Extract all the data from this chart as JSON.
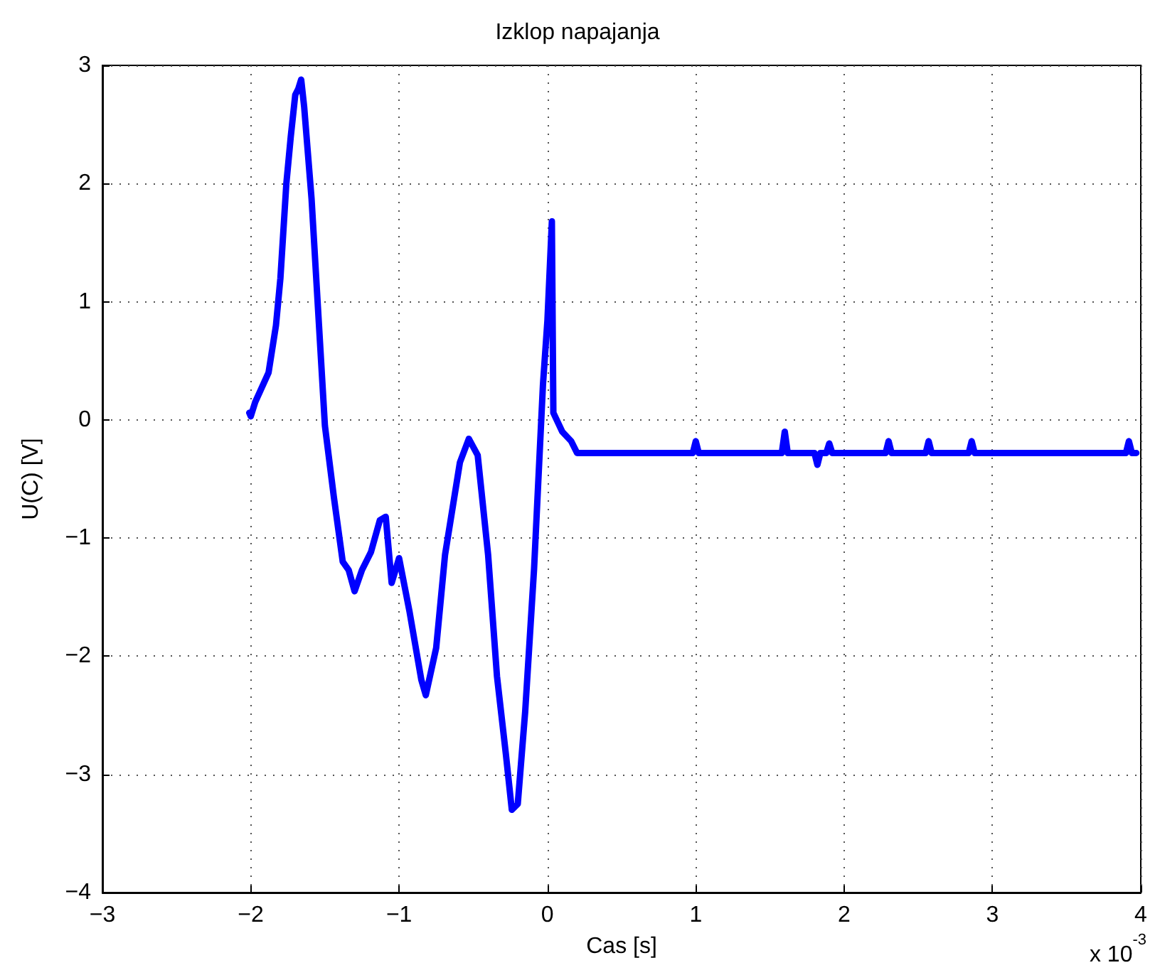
{
  "chart_data": {
    "type": "line",
    "title": "Izklop napajanja",
    "xlabel": "Cas [s]",
    "ylabel": "U(C) [V]",
    "annotations": [
      "x 10$^{-3}$"
    ],
    "x": [
      -2.01,
      -2.0,
      -1.97,
      -1.88,
      -1.83,
      -1.8,
      -1.76,
      -1.73,
      -1.7,
      -1.68,
      -1.66,
      -1.64,
      -1.59,
      -1.54,
      -1.5,
      -1.44,
      -1.38,
      -1.34,
      -1.3,
      -1.25,
      -1.19,
      -1.13,
      -1.09,
      -1.05,
      -1.0,
      -0.93,
      -0.85,
      -0.82,
      -0.75,
      -0.69,
      -0.59,
      -0.53,
      -0.47,
      -0.4,
      -0.34,
      -0.28,
      -0.24,
      -0.2,
      -0.15,
      -0.09,
      -0.03,
      0.0,
      0.03,
      0.04,
      0.1,
      0.16,
      0.2,
      0.98,
      1.0,
      1.02,
      1.58,
      1.6,
      1.62,
      1.8,
      1.82,
      1.84,
      1.88,
      1.9,
      1.92,
      2.28,
      2.3,
      2.32,
      2.55,
      2.57,
      2.59,
      2.84,
      2.86,
      2.88,
      3.9,
      3.92,
      3.94,
      3.97
    ],
    "series": [
      {
        "color": "#0000ff",
        "values": [
          0.06,
          0.03,
          0.15,
          0.4,
          0.8,
          1.2,
          2.0,
          2.4,
          2.75,
          2.8,
          2.88,
          2.65,
          1.87,
          0.8,
          -0.05,
          -0.65,
          -1.2,
          -1.27,
          -1.45,
          -1.27,
          -1.12,
          -0.85,
          -0.82,
          -1.38,
          -1.17,
          -1.62,
          -2.2,
          -2.33,
          -1.93,
          -1.14,
          -0.36,
          -0.16,
          -0.3,
          -1.14,
          -2.17,
          -2.83,
          -3.3,
          -3.25,
          -2.47,
          -1.26,
          0.3,
          0.84,
          1.68,
          0.06,
          -0.1,
          -0.18,
          -0.28,
          -0.28,
          -0.18,
          -0.28,
          -0.28,
          -0.1,
          -0.28,
          -0.28,
          -0.38,
          -0.28,
          -0.28,
          -0.2,
          -0.28,
          -0.28,
          -0.18,
          -0.28,
          -0.28,
          -0.18,
          -0.28,
          -0.28,
          -0.18,
          -0.28,
          -0.28,
          -0.18,
          -0.28,
          -0.28
        ]
      }
    ],
    "xlim": [
      -3,
      4
    ],
    "xticks": [
      -3,
      -2,
      -1,
      0,
      1,
      2,
      3,
      4
    ],
    "ylim": [
      -4,
      3
    ],
    "yticks": [
      -4,
      -3,
      -2,
      -1,
      0,
      1,
      2,
      3
    ],
    "grid": true,
    "marker": "none",
    "line_style": "solid"
  }
}
